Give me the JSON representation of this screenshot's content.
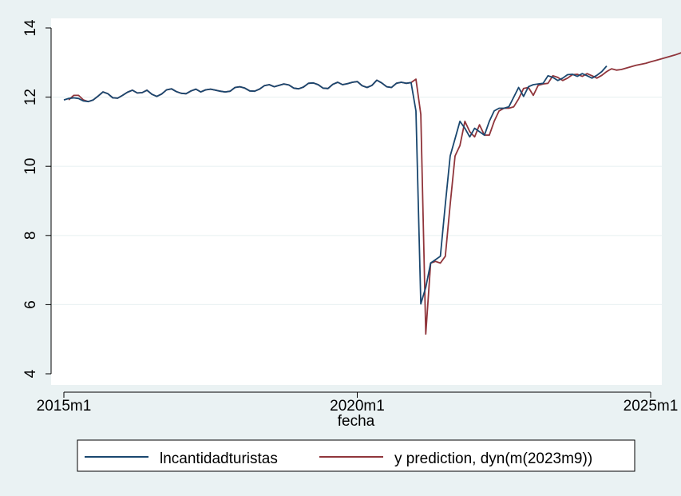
{
  "chart_data": {
    "type": "line",
    "title": "",
    "xlabel": "fecha",
    "ylabel": "",
    "x_tick_labels": [
      "2015m1",
      "2020m1",
      "2025m1"
    ],
    "x_tick_values": [
      0,
      60,
      120
    ],
    "y_ticks": [
      4,
      6,
      8,
      10,
      12,
      14
    ],
    "xlim": [
      0,
      120
    ],
    "ylim": [
      4,
      14
    ],
    "grid": "horizontal",
    "legend_position": "bottom",
    "colors": {
      "background": "#eaf2f3",
      "plot_area": "#ffffff",
      "grid": "#eaf2f3",
      "series_1": "#1a476f",
      "series_2": "#90353b"
    },
    "series": [
      {
        "name": "lncantidadturistas",
        "x_start": 0,
        "values": [
          11.92,
          11.96,
          11.98,
          11.96,
          11.89,
          11.87,
          11.92,
          12.03,
          12.15,
          12.1,
          11.98,
          11.97,
          12.05,
          12.14,
          12.2,
          12.12,
          12.13,
          12.2,
          12.08,
          12.02,
          12.09,
          12.21,
          12.24,
          12.16,
          12.11,
          12.1,
          12.18,
          12.23,
          12.15,
          12.21,
          12.23,
          12.2,
          12.17,
          12.15,
          12.17,
          12.28,
          12.3,
          12.26,
          12.18,
          12.17,
          12.23,
          12.33,
          12.36,
          12.3,
          12.34,
          12.38,
          12.35,
          12.26,
          12.24,
          12.29,
          12.4,
          12.41,
          12.36,
          12.26,
          12.25,
          12.37,
          12.43,
          12.36,
          12.39,
          12.43,
          12.45,
          12.33,
          12.28,
          12.34,
          12.49,
          12.41,
          12.3,
          12.28,
          12.4,
          12.43,
          12.4,
          12.42,
          11.6,
          6.02,
          6.5,
          7.2,
          7.3,
          7.4,
          8.9,
          10.3,
          10.8,
          11.3,
          11.1,
          10.85,
          11.1,
          11.0,
          10.9,
          11.3,
          11.6,
          11.68,
          11.68,
          11.72,
          12.0,
          12.28,
          12.02,
          12.3,
          12.36,
          12.38,
          12.4,
          12.62,
          12.57,
          12.48,
          12.55,
          12.65,
          12.66,
          12.6,
          12.68,
          12.62,
          12.55,
          12.63,
          12.74,
          12.9
        ]
      },
      {
        "name": "y prediction, dyn(m(2023m9))",
        "x_start": 1,
        "values": [
          11.92,
          12.05,
          12.05,
          11.92,
          11.87,
          11.92,
          12.03,
          12.15,
          12.1,
          11.98,
          11.97,
          12.05,
          12.14,
          12.2,
          12.12,
          12.13,
          12.2,
          12.08,
          12.02,
          12.09,
          12.21,
          12.24,
          12.16,
          12.11,
          12.1,
          12.18,
          12.23,
          12.15,
          12.21,
          12.23,
          12.2,
          12.17,
          12.15,
          12.17,
          12.28,
          12.3,
          12.26,
          12.18,
          12.17,
          12.23,
          12.33,
          12.36,
          12.3,
          12.34,
          12.38,
          12.35,
          12.26,
          12.24,
          12.29,
          12.4,
          12.41,
          12.36,
          12.26,
          12.25,
          12.37,
          12.43,
          12.36,
          12.39,
          12.43,
          12.45,
          12.33,
          12.28,
          12.34,
          12.49,
          12.41,
          12.3,
          12.28,
          12.4,
          12.43,
          12.4,
          12.42,
          12.52,
          11.5,
          5.15,
          7.2,
          7.25,
          7.2,
          7.4,
          8.9,
          10.3,
          10.6,
          11.3,
          11.0,
          10.85,
          11.2,
          10.9,
          10.9,
          11.3,
          11.6,
          11.68,
          11.68,
          11.72,
          11.95,
          12.25,
          12.28,
          12.05,
          12.34,
          12.38,
          12.4,
          12.62,
          12.57,
          12.48,
          12.55,
          12.65,
          12.66,
          12.6,
          12.68,
          12.62,
          12.55,
          12.63,
          12.74,
          12.82,
          12.78,
          12.8,
          12.84,
          12.88,
          12.92,
          12.95,
          12.98,
          13.02,
          13.06,
          13.1,
          13.14,
          13.18,
          13.22,
          13.27,
          13.32,
          13.38
        ]
      }
    ]
  }
}
